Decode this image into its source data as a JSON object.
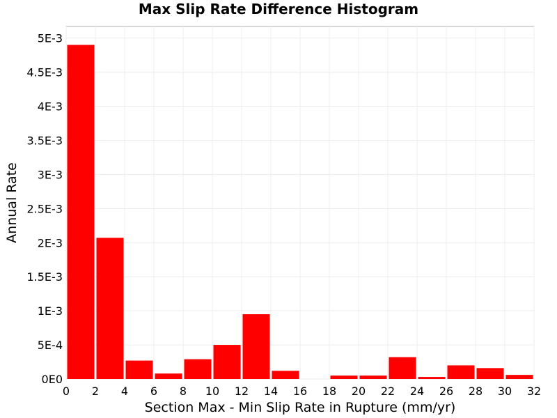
{
  "chart_data": {
    "type": "bar",
    "title": "Max Slip Rate Difference Histogram",
    "xlabel": "Section Max - Min Slip Rate in Rupture (mm/yr)",
    "ylabel": "Annual Rate",
    "bin_width": 2,
    "bins": [
      {
        "x0": 0,
        "x1": 2,
        "value": 0.0049
      },
      {
        "x0": 2,
        "x1": 4,
        "value": 0.00207
      },
      {
        "x0": 4,
        "x1": 6,
        "value": 0.00027
      },
      {
        "x0": 6,
        "x1": 8,
        "value": 8e-05
      },
      {
        "x0": 8,
        "x1": 10,
        "value": 0.00029
      },
      {
        "x0": 10,
        "x1": 12,
        "value": 0.0005
      },
      {
        "x0": 12,
        "x1": 14,
        "value": 0.00095
      },
      {
        "x0": 14,
        "x1": 16,
        "value": 0.00012
      },
      {
        "x0": 16,
        "x1": 18,
        "value": 0.0
      },
      {
        "x0": 18,
        "x1": 20,
        "value": 5e-05
      },
      {
        "x0": 20,
        "x1": 22,
        "value": 5e-05
      },
      {
        "x0": 22,
        "x1": 24,
        "value": 0.00032
      },
      {
        "x0": 24,
        "x1": 26,
        "value": 3e-05
      },
      {
        "x0": 26,
        "x1": 28,
        "value": 0.0002
      },
      {
        "x0": 28,
        "x1": 30,
        "value": 0.00016
      },
      {
        "x0": 30,
        "x1": 32,
        "value": 6e-05
      }
    ],
    "xlim": [
      0,
      32
    ],
    "ylim": [
      0,
      0.00517
    ],
    "x_ticks": [
      0,
      2,
      4,
      6,
      8,
      10,
      12,
      14,
      16,
      18,
      20,
      22,
      24,
      26,
      28,
      30,
      32
    ],
    "x_tick_labels": [
      "0",
      "2",
      "4",
      "6",
      "8",
      "10",
      "12",
      "14",
      "16",
      "18",
      "20",
      "22",
      "24",
      "26",
      "28",
      "30",
      "32"
    ],
    "y_ticks": [
      0,
      0.0005,
      0.001,
      0.0015,
      0.002,
      0.0025,
      0.003,
      0.0035,
      0.004,
      0.0045,
      0.005
    ],
    "y_tick_labels": [
      "0E0",
      "5E-4",
      "1E-3",
      "1.5E-3",
      "2E-3",
      "2.5E-3",
      "3E-3",
      "3.5E-3",
      "4E-3",
      "4.5E-3",
      "5E-3"
    ],
    "grid": true,
    "bar_color": "#ff0000",
    "grid_color": "#ececec"
  }
}
